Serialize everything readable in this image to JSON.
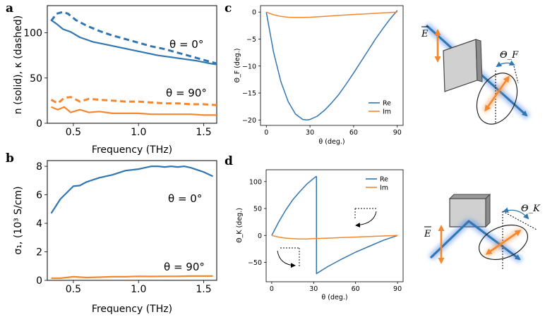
{
  "chart_data": [
    {
      "id": "a",
      "type": "line",
      "panel_label": "a",
      "xlabel": "Frequency (THz)",
      "ylabel": "n (solid), κ (dashed)",
      "xlim": [
        0.3,
        1.6
      ],
      "ylim": [
        0,
        130
      ],
      "xticks": [
        "0.5",
        "1.0",
        "1.5"
      ],
      "xtick_values": [
        0.5,
        1.0,
        1.5
      ],
      "yticks": [
        "0",
        "50",
        "100"
      ],
      "ytick_values": [
        0,
        50,
        100
      ],
      "annotations": [
        "θ = 0°",
        "θ = 90°"
      ],
      "colors": {
        "blue": "#3276b1",
        "orange": "#f5872e"
      },
      "series": [
        {
          "name": "n, θ = 0°",
          "style": "solid",
          "color": "blue",
          "x": [
            0.33,
            0.37,
            0.42,
            0.48,
            0.55,
            0.65,
            0.75,
            0.85,
            0.95,
            1.05,
            1.15,
            1.25,
            1.35,
            1.45,
            1.55,
            1.6
          ],
          "y": [
            114,
            110,
            104,
            101,
            95,
            90,
            87,
            84,
            81,
            78,
            75,
            73,
            71,
            69,
            66,
            65
          ]
        },
        {
          "name": "κ, θ = 0°",
          "style": "dashed",
          "color": "blue",
          "x": [
            0.33,
            0.37,
            0.42,
            0.46,
            0.52,
            0.6,
            0.7,
            0.8,
            0.9,
            1.0,
            1.1,
            1.2,
            1.3,
            1.4,
            1.5,
            1.6
          ],
          "y": [
            113,
            121,
            123,
            121,
            114,
            108,
            102,
            97,
            93,
            89,
            85,
            82,
            78,
            74,
            70,
            66
          ]
        },
        {
          "name": "n, θ = 90°",
          "style": "solid",
          "color": "orange",
          "x": [
            0.33,
            0.38,
            0.43,
            0.48,
            0.55,
            0.62,
            0.7,
            0.8,
            0.9,
            1.0,
            1.1,
            1.2,
            1.3,
            1.4,
            1.5,
            1.6
          ],
          "y": [
            18,
            15,
            18,
            12,
            15,
            12,
            13,
            11,
            11,
            11,
            10,
            10,
            10,
            10,
            9,
            9
          ]
        },
        {
          "name": "κ, θ = 90°",
          "style": "dashed",
          "color": "orange",
          "x": [
            0.33,
            0.38,
            0.43,
            0.48,
            0.55,
            0.62,
            0.7,
            0.8,
            0.9,
            1.0,
            1.1,
            1.2,
            1.3,
            1.4,
            1.5,
            1.6
          ],
          "y": [
            26,
            22,
            28,
            29,
            24,
            27,
            26,
            25,
            24,
            24,
            23,
            22,
            22,
            21,
            21,
            20
          ]
        }
      ]
    },
    {
      "id": "b",
      "type": "line",
      "panel_label": "b",
      "xlabel": "Frequency (THz)",
      "ylabel": "σ₁, (10³ S/cm)",
      "xlim": [
        0.3,
        1.6
      ],
      "ylim": [
        0,
        8.4
      ],
      "xticks": [
        "0.5",
        "1.0",
        "1.5"
      ],
      "xtick_values": [
        0.5,
        1.0,
        1.5
      ],
      "yticks": [
        "0",
        "2",
        "4",
        "6",
        "8"
      ],
      "ytick_values": [
        0,
        2,
        4,
        6,
        8
      ],
      "annotations": [
        "θ = 0°",
        "θ = 90°"
      ],
      "series": [
        {
          "name": "θ = 0°",
          "color": "blue",
          "x": [
            0.33,
            0.4,
            0.5,
            0.55,
            0.6,
            0.7,
            0.8,
            0.9,
            1.0,
            1.1,
            1.15,
            1.2,
            1.25,
            1.3,
            1.35,
            1.4,
            1.5,
            1.57
          ],
          "y": [
            4.7,
            5.7,
            6.6,
            6.65,
            6.9,
            7.2,
            7.4,
            7.7,
            7.8,
            8.0,
            8.0,
            7.95,
            8.0,
            7.95,
            8.0,
            7.9,
            7.6,
            7.3
          ]
        },
        {
          "name": "θ = 90°",
          "color": "orange",
          "x": [
            0.33,
            0.4,
            0.5,
            0.6,
            0.7,
            0.8,
            0.9,
            1.0,
            1.1,
            1.2,
            1.3,
            1.4,
            1.5,
            1.57
          ],
          "y": [
            0.15,
            0.15,
            0.25,
            0.2,
            0.22,
            0.25,
            0.25,
            0.28,
            0.27,
            0.28,
            0.28,
            0.3,
            0.3,
            0.3
          ]
        }
      ]
    },
    {
      "id": "c",
      "type": "line",
      "panel_label": "c",
      "xlabel": "θ (deg.)",
      "ylabel": "Θ_F (deg.)",
      "xlim": [
        -4,
        94
      ],
      "ylim": [
        -21,
        1.2
      ],
      "xticks": [
        "0",
        "30",
        "60",
        "90"
      ],
      "xtick_values": [
        0,
        30,
        60,
        90
      ],
      "yticks": [
        "0",
        "−5",
        "−10",
        "−15",
        "−20"
      ],
      "ytick_values": [
        0,
        -5,
        -10,
        -15,
        -20
      ],
      "legend": {
        "placement": "lower-right",
        "entries": [
          "Re",
          "Im"
        ]
      },
      "series": [
        {
          "name": "Re",
          "color": "blue",
          "x": [
            0,
            5,
            10,
            15,
            20,
            25,
            28,
            30,
            35,
            40,
            45,
            50,
            55,
            60,
            65,
            70,
            75,
            80,
            85,
            90
          ],
          "y": [
            0,
            -7.5,
            -12.9,
            -16.6,
            -18.9,
            -19.9,
            -20.0,
            -19.9,
            -19.3,
            -18.2,
            -16.8,
            -15.2,
            -13.3,
            -11.3,
            -9.2,
            -7.1,
            -5.0,
            -3.1,
            -1.3,
            0.3
          ]
        },
        {
          "name": "Im",
          "color": "orange",
          "x": [
            0,
            5,
            10,
            15,
            20,
            25,
            30,
            40,
            50,
            60,
            70,
            80,
            90
          ],
          "y": [
            0,
            -0.5,
            -0.8,
            -0.95,
            -1.0,
            -1.0,
            -0.95,
            -0.8,
            -0.6,
            -0.45,
            -0.3,
            -0.15,
            0
          ]
        }
      ],
      "diagram": {
        "field_label": "E",
        "angle_label": "Θ_F"
      }
    },
    {
      "id": "d",
      "type": "line",
      "panel_label": "d",
      "xlabel": "θ (deg.)",
      "ylabel": "Θ_K (deg.)",
      "xlim": [
        -4,
        94
      ],
      "ylim": [
        -86,
        122
      ],
      "xticks": [
        "0",
        "30",
        "60",
        "90"
      ],
      "xtick_values": [
        0,
        30,
        60,
        90
      ],
      "yticks": [
        "100",
        "50",
        "0",
        "−50"
      ],
      "ytick_values": [
        100,
        50,
        0,
        -50
      ],
      "legend": {
        "placement": "top-right",
        "entries": [
          "Re",
          "Im"
        ]
      },
      "series": [
        {
          "name": "Re (0–32°)",
          "color": "blue",
          "x": [
            0,
            5,
            10,
            15,
            20,
            25,
            30,
            32
          ],
          "y": [
            0,
            25,
            47,
            66,
            81,
            95,
            106,
            110
          ]
        },
        {
          "name": "Re (32–90°)",
          "color": "blue",
          "x": [
            32,
            32,
            40,
            50,
            60,
            70,
            80,
            90
          ],
          "y": [
            110,
            -71,
            -58,
            -44,
            -31,
            -20,
            -9,
            0
          ]
        },
        {
          "name": "Im",
          "color": "orange",
          "x": [
            0,
            5,
            10,
            15,
            20,
            25,
            30,
            40,
            50,
            60,
            70,
            80,
            90
          ],
          "y": [
            0,
            -3,
            -5,
            -6,
            -6.5,
            -6.5,
            -6,
            -5,
            -4,
            -3,
            -2,
            -1,
            0
          ]
        }
      ],
      "diagram": {
        "field_label": "E",
        "angle_label": "Θ_K"
      }
    }
  ]
}
